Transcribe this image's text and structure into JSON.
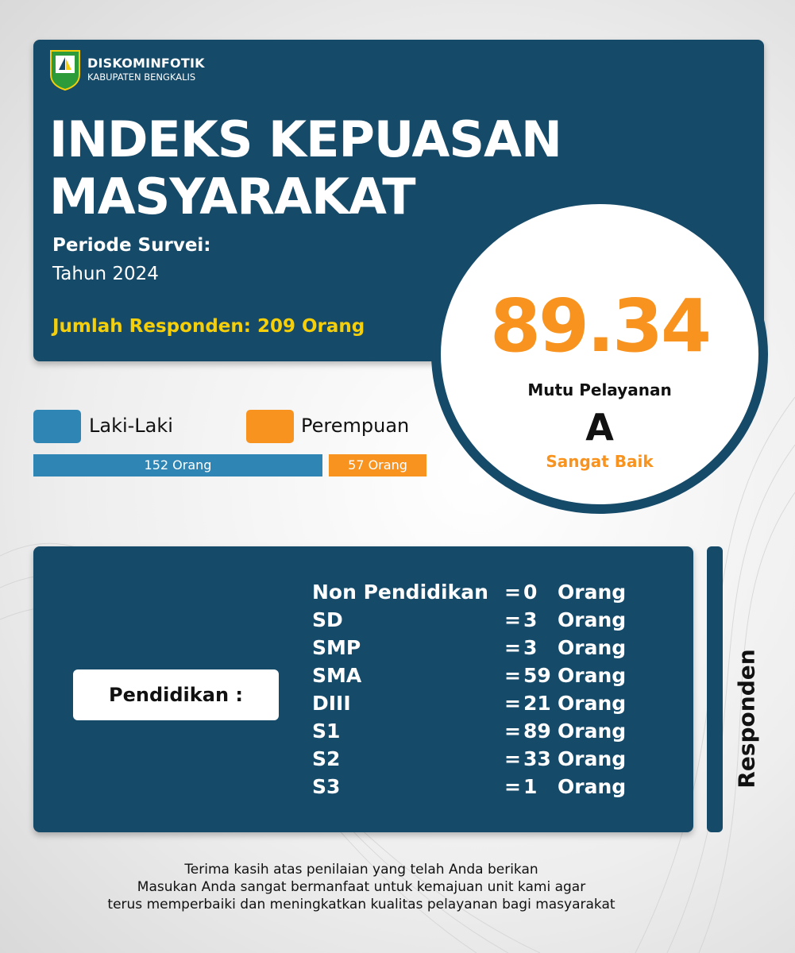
{
  "header": {
    "org": "DISKOMINFOTIK",
    "region": "KABUPATEN BENGKALIS",
    "title_line1": "INDEKS KEPUASAN",
    "title_line2": "MASYARAKAT",
    "periode_label": "Periode Survei:",
    "periode_value": "Tahun 2024",
    "jumlah": "Jumlah Responden:  209 Orang"
  },
  "score": {
    "value": "89.34",
    "label": "Mutu Pelayanan",
    "grade": "A",
    "category": "Sangat Baik"
  },
  "gender": {
    "male_label": "Laki-Laki",
    "female_label": "Perempuan",
    "male_value": "152 Orang",
    "female_value": "57 Orang",
    "male_count": 152,
    "female_count": 57,
    "male_color": "#2f86b5",
    "female_color": "#f7931e"
  },
  "education": {
    "label": "Pendidikan :",
    "side_label": "Responden",
    "rows": [
      {
        "name": "Non Pendidikan",
        "eq": "=",
        "value": "0",
        "unit": "Orang"
      },
      {
        "name": "SD",
        "eq": "=",
        "value": "3",
        "unit": "Orang"
      },
      {
        "name": "SMP",
        "eq": "=",
        "value": "3",
        "unit": "Orang"
      },
      {
        "name": "SMA",
        "eq": "=",
        "value": "59",
        "unit": "Orang"
      },
      {
        "name": "DIII",
        "eq": "=",
        "value": "21",
        "unit": "Orang"
      },
      {
        "name": "S1",
        "eq": "=",
        "value": "89",
        "unit": "Orang"
      },
      {
        "name": "S2",
        "eq": "=",
        "value": "33",
        "unit": "Orang"
      },
      {
        "name": "S3",
        "eq": "=",
        "value": "1",
        "unit": "Orang"
      }
    ]
  },
  "footer": {
    "line1": "Terima kasih atas penilaian yang telah Anda berikan",
    "line2": "Masukan Anda sangat bermanfaat untuk kemajuan unit kami agar",
    "line3": "terus memperbaiki dan meningkatkan kualitas pelayanan bagi masyarakat"
  },
  "colors": {
    "primary": "#164a69",
    "accent": "#f7931e",
    "highlight": "#f5cf0a"
  }
}
